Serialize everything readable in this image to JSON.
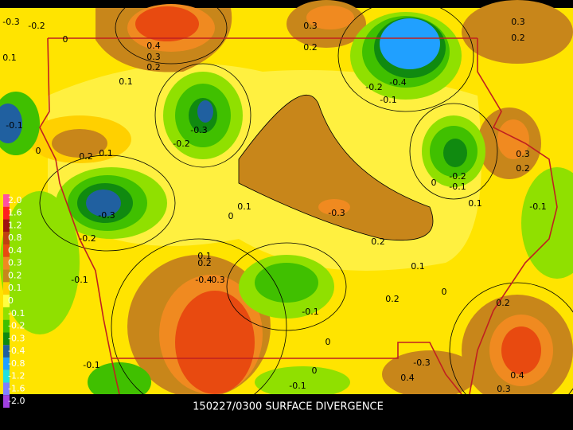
{
  "caption": "150227/0300 SURFACE DIVERGENCE",
  "legend": [
    {
      "label": "2.0",
      "color": "#ff50a0"
    },
    {
      "label": "1.6",
      "color": "#ff2020"
    },
    {
      "label": "1.2",
      "color": "#a01010"
    },
    {
      "label": "0.8",
      "color": "#c04010"
    },
    {
      "label": "0.4",
      "color": "#e84a10"
    },
    {
      "label": "0.3",
      "color": "#f08a20"
    },
    {
      "label": "0.2",
      "color": "#c8861a"
    },
    {
      "label": "0.1",
      "color": "#ffd000"
    },
    {
      "label": "0",
      "color": "#ffff40"
    },
    {
      "label": "-0.1",
      "color": "#90e000"
    },
    {
      "label": "-0.2",
      "color": "#40c000"
    },
    {
      "label": "-0.3",
      "color": "#108a10"
    },
    {
      "label": "-0.4",
      "color": "#2060a0"
    },
    {
      "label": "-0.8",
      "color": "#20a0ff"
    },
    {
      "label": "-1.2",
      "color": "#20e0e0"
    },
    {
      "label": "-1.6",
      "color": "#8080ff"
    },
    {
      "label": "-2.0",
      "color": "#a040e0"
    }
  ],
  "contour_labels": [
    "-0.3",
    "-0.2",
    "0",
    "0.1",
    "0.4",
    "0.3",
    "0.2",
    "0.1",
    "0.3",
    "0.2",
    "-0.2",
    "-0.4",
    "-0.1",
    "0.3",
    "0.2",
    "-0.1",
    "0",
    "0.2",
    "0.1",
    "-0.2",
    "-0.3",
    "0.3",
    "0.2",
    "-0.2",
    "-0.1",
    "0",
    "0.1",
    "-0.1",
    "-0.3",
    "0.1",
    "0",
    "-0.3",
    "-0.2",
    "0.2",
    "0.1",
    "0.2",
    "0.1",
    "-0.4",
    "-0.3",
    "-0.1",
    "0",
    "0.2",
    "-0.1",
    "0.2",
    "0",
    "-0.1",
    "0",
    "-0.3",
    "0.4",
    "-0.1",
    "0.4",
    "0.3"
  ]
}
